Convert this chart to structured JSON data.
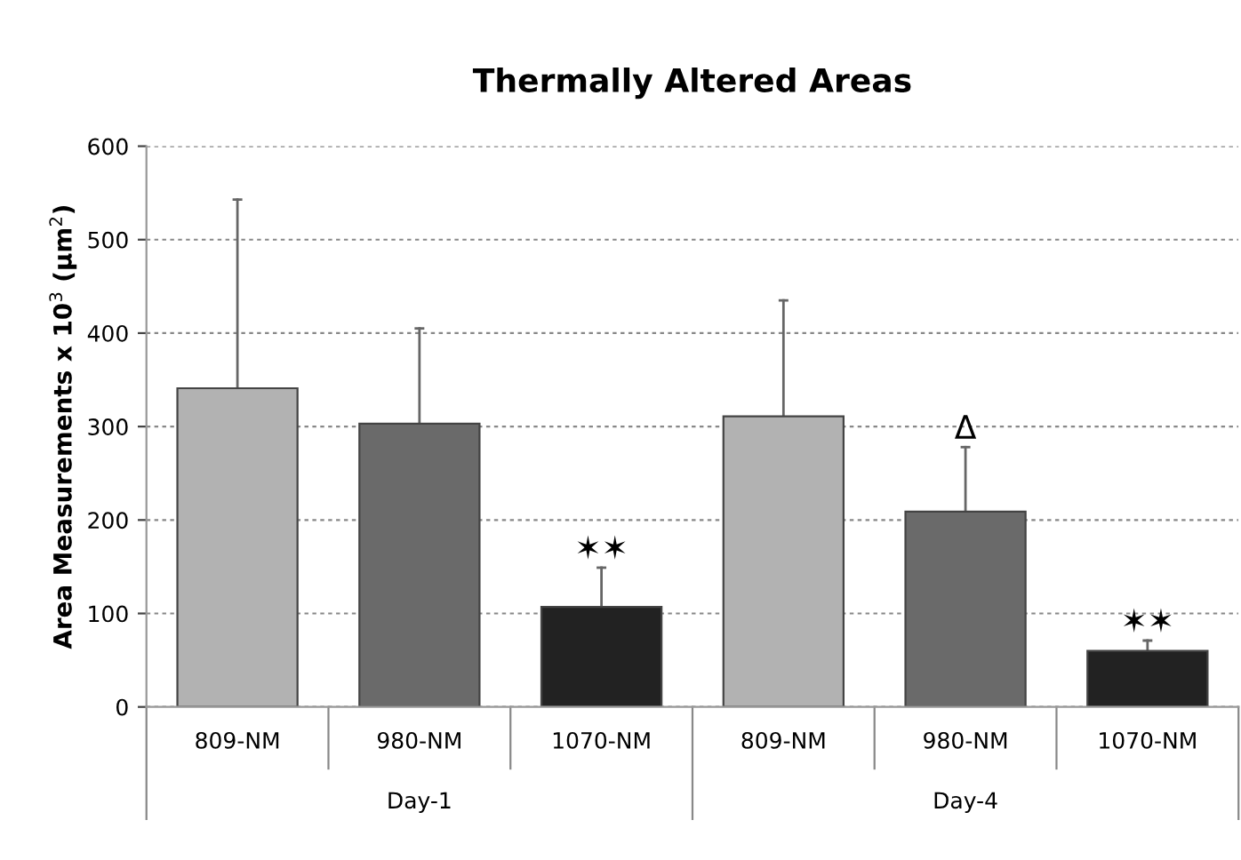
{
  "chart_data": {
    "type": "bar",
    "title": "Thermally Altered Areas",
    "ylabel": "Area Measurements x 10$^{3}$ (μm$^{2}$)",
    "categories": [
      "809-NM",
      "980-NM",
      "1070-NM",
      "809-NM",
      "980-NM",
      "1070-NM"
    ],
    "values": [
      341,
      303,
      107,
      311,
      209,
      60
    ],
    "colors": [
      "#b2b2b2",
      "#6a6a6a",
      "#222222",
      "#b2b2b2",
      "#6a6a6a",
      "#222222"
    ],
    "errors": [
      [
        341,
        543
      ],
      [
        303,
        405
      ],
      [
        107,
        149
      ],
      [
        311,
        435
      ],
      [
        209,
        278
      ],
      [
        60,
        71
      ]
    ],
    "value_labels": [
      null,
      null,
      "✶✶",
      null,
      "Δ",
      "✶✶"
    ],
    "annotations": [
      "Day-1",
      "Day-4"
    ],
    "ylim": [
      0,
      600
    ],
    "yticks": [
      0,
      100,
      200,
      300,
      400,
      500,
      600
    ],
    "grid": "y"
  }
}
